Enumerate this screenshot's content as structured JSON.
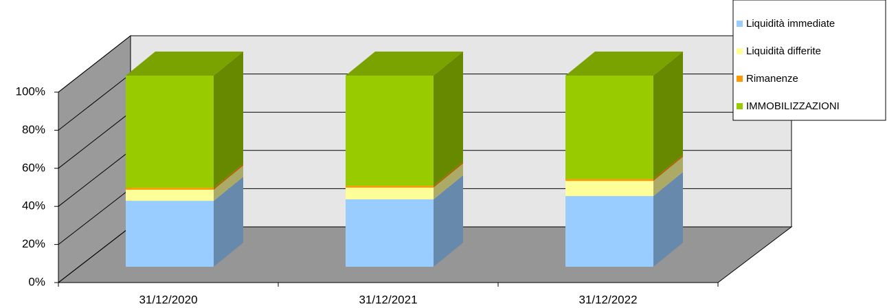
{
  "chart_data": {
    "type": "bar3d_stacked",
    "categories": [
      "31/12/2020",
      "31/12/2021",
      "31/12/2022"
    ],
    "series": [
      {
        "name": "Liquidità immediate",
        "color": "#99ccff",
        "values": [
          34.5,
          35.3,
          37.0
        ]
      },
      {
        "name": "Liquidità differite",
        "color": "#ffff99",
        "values": [
          5.8,
          6.1,
          7.9
        ]
      },
      {
        "name": "Rimanenze",
        "color": "#ff9900",
        "values": [
          1.0,
          1.0,
          1.0
        ]
      },
      {
        "name": "IMMOBILIZZAZIONI",
        "color": "#99cc00",
        "values": [
          58.7,
          57.6,
          54.1
        ]
      }
    ],
    "ylim": [
      0,
      100
    ],
    "yticks": [
      {
        "value": 0,
        "label": "0%"
      },
      {
        "value": 20,
        "label": "20%"
      },
      {
        "value": 40,
        "label": "40%"
      },
      {
        "value": 60,
        "label": "60%"
      },
      {
        "value": 80,
        "label": "80%"
      },
      {
        "value": 100,
        "label": "100%"
      }
    ],
    "grid": true,
    "legend": "top-right"
  }
}
